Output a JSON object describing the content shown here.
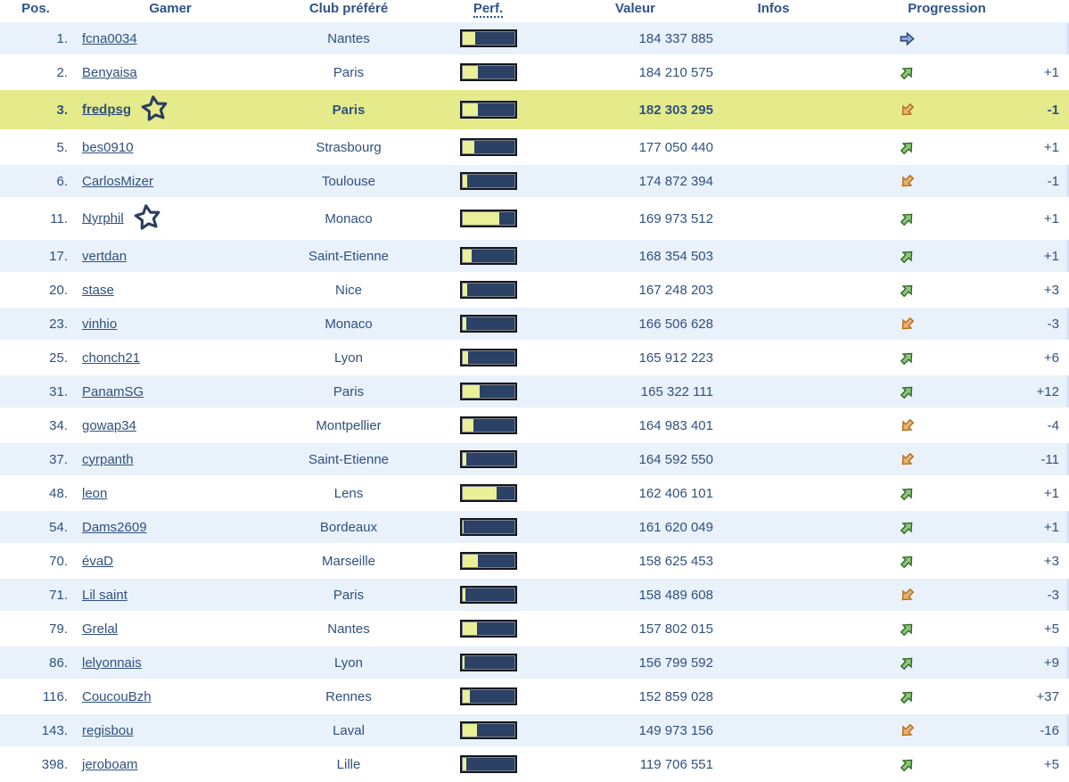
{
  "table": {
    "headers": {
      "pos": "Pos.",
      "gamer": "Gamer",
      "club": "Club préféré",
      "perf": "Perf.",
      "valeur": "Valeur",
      "infos": "Infos",
      "progression": "Progression"
    },
    "rows": [
      {
        "pos": "1.",
        "gamer": "fcna0034",
        "club": "Nantes",
        "perf_pct": 28,
        "valeur": "184 337 885",
        "infos": "",
        "trend": "neutral",
        "progression": "",
        "starred": false,
        "highlighted": false
      },
      {
        "pos": "2.",
        "gamer": "Benyaisa",
        "club": "Paris",
        "perf_pct": 32,
        "valeur": "184 210 575",
        "infos": "",
        "trend": "up",
        "progression": "+1",
        "starred": false,
        "highlighted": false
      },
      {
        "pos": "3.",
        "gamer": "fredpsg",
        "club": "Paris",
        "perf_pct": 33,
        "valeur": "182 303 295",
        "infos": "",
        "trend": "down",
        "progression": "-1",
        "starred": true,
        "highlighted": true
      },
      {
        "pos": "5.",
        "gamer": "bes0910",
        "club": "Strasbourg",
        "perf_pct": 25,
        "valeur": "177 050 440",
        "infos": "",
        "trend": "up",
        "progression": "+1",
        "starred": false,
        "highlighted": false
      },
      {
        "pos": "6.",
        "gamer": "CarlosMizer",
        "club": "Toulouse",
        "perf_pct": 13,
        "valeur": "174 872 394",
        "infos": "",
        "trend": "down",
        "progression": "-1",
        "starred": false,
        "highlighted": false
      },
      {
        "pos": "11.",
        "gamer": "Nyrphil",
        "club": "Monaco",
        "perf_pct": 72,
        "valeur": "169 973 512",
        "infos": "",
        "trend": "up",
        "progression": "+1",
        "starred": true,
        "highlighted": false
      },
      {
        "pos": "17.",
        "gamer": "vertdan",
        "club": "Saint-Etienne",
        "perf_pct": 20,
        "valeur": "168 354 503",
        "infos": "",
        "trend": "up",
        "progression": "+1",
        "starred": false,
        "highlighted": false
      },
      {
        "pos": "20.",
        "gamer": "stase",
        "club": "Nice",
        "perf_pct": 12,
        "valeur": "167 248 203",
        "infos": "",
        "trend": "up",
        "progression": "+3",
        "starred": false,
        "highlighted": false
      },
      {
        "pos": "23.",
        "gamer": "vinhio",
        "club": "Monaco",
        "perf_pct": 10,
        "valeur": "166 506 628",
        "infos": "",
        "trend": "down",
        "progression": "-3",
        "starred": false,
        "highlighted": false
      },
      {
        "pos": "25.",
        "gamer": "chonch21",
        "club": "Lyon",
        "perf_pct": 14,
        "valeur": "165 912 223",
        "infos": "",
        "trend": "up",
        "progression": "+6",
        "starred": false,
        "highlighted": false
      },
      {
        "pos": "31.",
        "gamer": "PanamSG",
        "club": "Paris",
        "perf_pct": 35,
        "valeur": "165 322 111",
        "infos": "",
        "trend": "up",
        "progression": "+12",
        "starred": false,
        "highlighted": false
      },
      {
        "pos": "34.",
        "gamer": "gowap34",
        "club": "Montpellier",
        "perf_pct": 24,
        "valeur": "164 983 401",
        "infos": "",
        "trend": "down",
        "progression": "-4",
        "starred": false,
        "highlighted": false
      },
      {
        "pos": "37.",
        "gamer": "cyrpanth",
        "club": "Saint-Etienne",
        "perf_pct": 11,
        "valeur": "164 592 550",
        "infos": "",
        "trend": "down",
        "progression": "-11",
        "starred": false,
        "highlighted": false
      },
      {
        "pos": "48.",
        "gamer": "leon",
        "club": "Lens",
        "perf_pct": 68,
        "valeur": "162 406 101",
        "infos": "",
        "trend": "up",
        "progression": "+1",
        "starred": false,
        "highlighted": false
      },
      {
        "pos": "54.",
        "gamer": "Dams2609",
        "club": "Bordeaux",
        "perf_pct": 5,
        "valeur": "161 620 049",
        "infos": "",
        "trend": "up",
        "progression": "+1",
        "starred": false,
        "highlighted": false
      },
      {
        "pos": "70.",
        "gamer": "évaD",
        "club": "Marseille",
        "perf_pct": 33,
        "valeur": "158 625 453",
        "infos": "",
        "trend": "up",
        "progression": "+3",
        "starred": false,
        "highlighted": false
      },
      {
        "pos": "71.",
        "gamer": "Lil saint",
        "club": "Paris",
        "perf_pct": 9,
        "valeur": "158 489 608",
        "infos": "",
        "trend": "down",
        "progression": "-3",
        "starred": false,
        "highlighted": false
      },
      {
        "pos": "79.",
        "gamer": "Grelal",
        "club": "Nantes",
        "perf_pct": 30,
        "valeur": "157 802 015",
        "infos": "",
        "trend": "up",
        "progression": "+5",
        "starred": false,
        "highlighted": false
      },
      {
        "pos": "86.",
        "gamer": "lelyonnais",
        "club": "Lyon",
        "perf_pct": 7,
        "valeur": "156 799 592",
        "infos": "",
        "trend": "up",
        "progression": "+9",
        "starred": false,
        "highlighted": false
      },
      {
        "pos": "116.",
        "gamer": "CoucouBzh",
        "club": "Rennes",
        "perf_pct": 17,
        "valeur": "152 859 028",
        "infos": "",
        "trend": "up",
        "progression": "+37",
        "starred": false,
        "highlighted": false
      },
      {
        "pos": "143.",
        "gamer": "regisbou",
        "club": "Laval",
        "perf_pct": 30,
        "valeur": "149 973 156",
        "infos": "",
        "trend": "down",
        "progression": "-16",
        "starred": false,
        "highlighted": false
      },
      {
        "pos": "398.",
        "gamer": "jeroboam",
        "club": "Lille",
        "perf_pct": 10,
        "valeur": "119 706 551",
        "infos": "",
        "trend": "up",
        "progression": "+5",
        "starred": false,
        "highlighted": false
      }
    ]
  },
  "icons": {
    "star": "favorite-star-icon",
    "trend_up": "arrow-up-right-icon",
    "trend_down": "arrow-down-left-icon",
    "trend_neutral": "arrow-right-icon"
  },
  "colors": {
    "text": "#30517f",
    "row_alt": "#e9f1fb",
    "row_highlight": "#e5eb8b",
    "bar_track": "#2b4165",
    "bar_fill": "#e9f097",
    "trend_up": "#8fc77e",
    "trend_down": "#e7b377",
    "trend_neutral": "#8fa3d6"
  }
}
